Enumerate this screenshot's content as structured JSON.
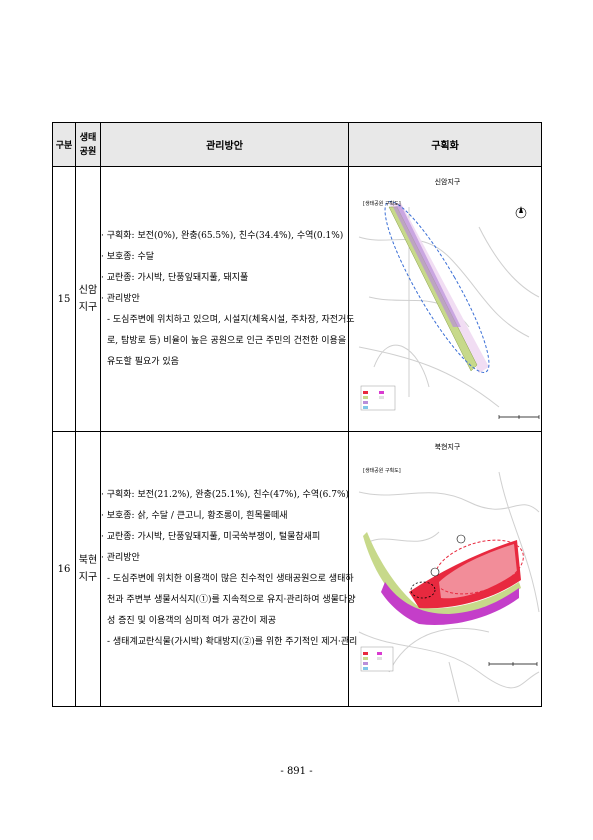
{
  "table": {
    "headers": {
      "division": "구분",
      "park": "생태\n공원",
      "plan": "관리방안",
      "zoning": "구획화"
    },
    "rows": [
      {
        "num": "15",
        "park_line1": "신암",
        "park_line2": "지구",
        "plan": [
          "· 구획화: 보전(0%), 완충(65.5%), 친수(34.4%), 수역(0.1%)",
          "· 보호종: 수달",
          "· 교란종: 가시박, 단풍잎돼지풀, 돼지풀",
          "· 관리방안",
          "- 도심주변에 위치하고 있으며, 시설지(체육시설, 주차장, 자전거도",
          "로, 탐방로 등) 비율이 높은 공원으로 인근 주민의 건전한 이용을",
          "유도할 필요가 있음"
        ],
        "map_title": "신암지구",
        "map_label": "[생태공원 구획도]"
      },
      {
        "num": "16",
        "park_line1": "북현",
        "park_line2": "지구",
        "plan": [
          "· 구획화: 보전(21.2%), 완충(25.1%), 친수(47%), 수역(6.7%)",
          "· 보호종: 삵, 수달 / 큰고니, 황조롱이, 흰목물떼새",
          "· 교란종: 가시박, 단풍잎돼지풀, 미국쑥부쟁이, 털물참새피",
          "· 관리방안",
          "- 도심주변에 위치한 이용객이 많은 친수적인 생태공원으로 생태하",
          "천과 주변부 생물서식지(①)를 지속적으로 유지·관리하여 생물다양",
          "성 증진 및 이용객의 심미적 여가 공간이 제공",
          "- 생태계교란식물(가시박) 확대방지(②)를 위한 주기적인 제거·관리"
        ],
        "map_title": "북현지구",
        "map_label": "[생태공원 구획도]"
      }
    ]
  },
  "colors": {
    "header_bg": "#e8e8e8",
    "buffer": "#c7d98a",
    "waterfront": "#b98fd9",
    "conservation": "#e8293f",
    "hydrophilic": "#d93bd0",
    "dashed": "#3b6fd6"
  },
  "page_number": "- 891 -"
}
